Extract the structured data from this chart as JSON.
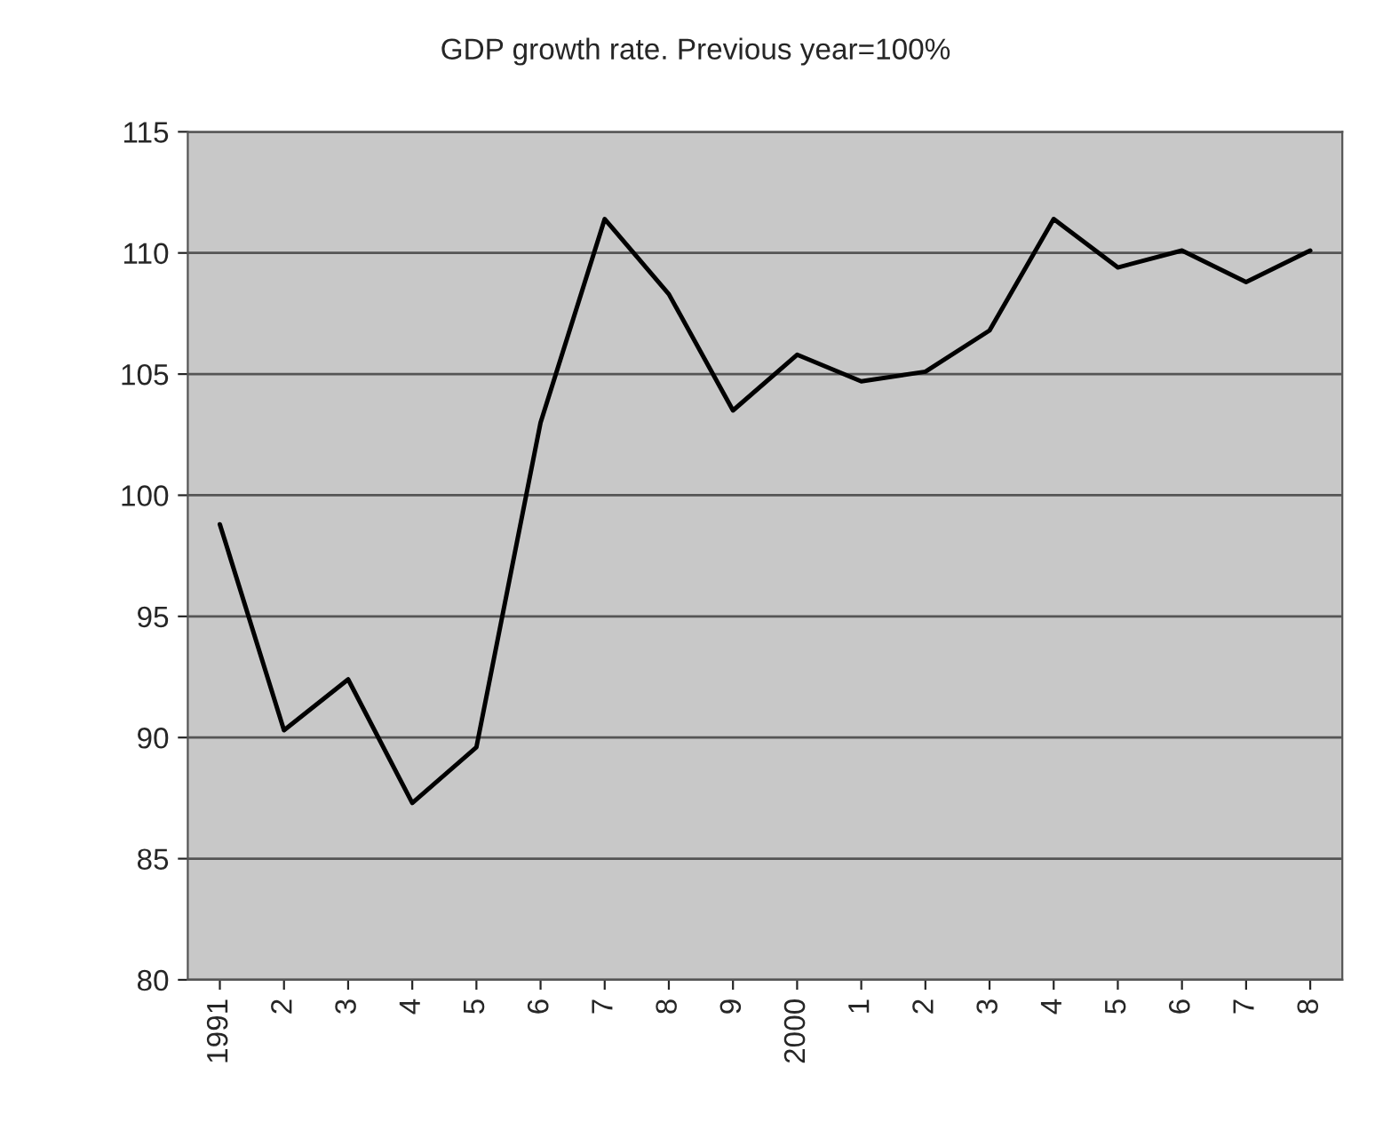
{
  "chart_data": {
    "type": "line",
    "title": "GDP growth rate. Previous year=100%",
    "categories": [
      "1991",
      "2",
      "3",
      "4",
      "5",
      "6",
      "7",
      "8",
      "9",
      "2000",
      "1",
      "2",
      "3",
      "4",
      "5",
      "6",
      "7",
      "8"
    ],
    "series": [
      {
        "color": "#000000",
        "values": [
          98.8,
          90.3,
          92.4,
          87.3,
          89.6,
          103.0,
          111.4,
          108.3,
          103.5,
          105.8,
          104.7,
          105.1,
          106.8,
          111.4,
          109.4,
          110.1,
          108.8,
          110.1
        ]
      }
    ],
    "ylim": [
      80,
      115
    ],
    "yticks": [
      80,
      85,
      90,
      95,
      100,
      105,
      110,
      115
    ],
    "grid": "y",
    "legend": false
  }
}
